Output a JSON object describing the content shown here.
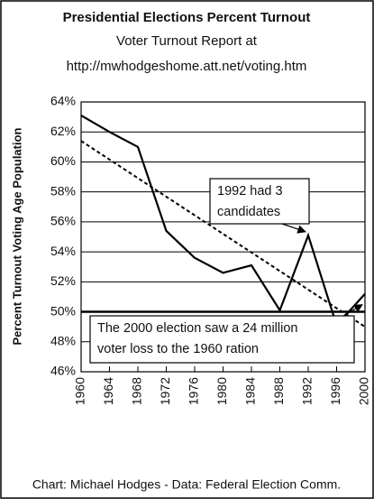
{
  "chart_data": {
    "type": "line",
    "title": "Presidential Elections Percent Turnout",
    "subtitle": [
      "Voter Turnout Report at",
      "http://mwhodgeshome.att.net/voting.htm"
    ],
    "y_label": "Percent Turnout Voting Age Population",
    "footer": "Chart: Michael Hodges - Data: Federal Election Comm.",
    "x": [
      1960,
      1964,
      1968,
      1972,
      1976,
      1980,
      1984,
      1988,
      1992,
      1996,
      2000
    ],
    "series": [
      {
        "color": "#000000",
        "values": [
          63.1,
          62.0,
          61.0,
          55.4,
          53.6,
          52.6,
          53.1,
          50.1,
          55.1,
          49.1,
          51.2
        ]
      }
    ],
    "trend": {
      "x": [
        1960,
        2000
      ],
      "values": [
        61.4,
        49.0
      ],
      "color": "#000000"
    },
    "reference_line": 50,
    "xlim": [
      1960,
      2000
    ],
    "xticks": [
      1960,
      1964,
      1968,
      1972,
      1976,
      1980,
      1984,
      1988,
      1992,
      1996,
      2000
    ],
    "ylim": [
      46,
      64
    ],
    "yticks": [
      {
        "value": 46,
        "label": "46%"
      },
      {
        "value": 48,
        "label": "48%"
      },
      {
        "value": 50,
        "label": "50%"
      },
      {
        "value": 52,
        "label": "52%"
      },
      {
        "value": 54,
        "label": "54%"
      },
      {
        "value": 56,
        "label": "56%"
      },
      {
        "value": 58,
        "label": "58%"
      },
      {
        "value": 60,
        "label": "60%"
      },
      {
        "value": 62,
        "label": "62%"
      },
      {
        "value": 64,
        "label": "64%"
      }
    ],
    "grid": true,
    "annotations": [
      {
        "lines": [
          "1992 had 3",
          "candidates"
        ],
        "point": 8
      },
      {
        "lines": [
          "The 2000 election saw a 24 million",
          "voter loss to the 1960 ration"
        ],
        "point": 10
      }
    ]
  }
}
